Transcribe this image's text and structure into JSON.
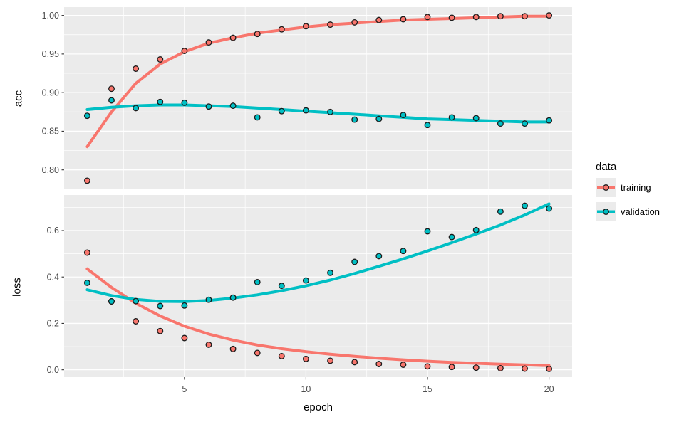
{
  "chart_data": {
    "type": "scatter",
    "note": "ggplot2-style Keras training history: points + smoothed trend lines, facets acc / loss",
    "x": [
      1,
      2,
      3,
      4,
      5,
      6,
      7,
      8,
      9,
      10,
      11,
      12,
      13,
      14,
      15,
      16,
      17,
      18,
      19,
      20
    ],
    "xlabel": "epoch",
    "xlim": [
      0.05,
      20.95
    ],
    "x_major_ticks": [
      {
        "v": 5,
        "label": "5"
      },
      {
        "v": 10,
        "label": "10"
      },
      {
        "v": 15,
        "label": "15"
      },
      {
        "v": 20,
        "label": "20"
      }
    ],
    "x_minor_ticks": [
      2.5,
      7.5,
      12.5,
      17.5
    ],
    "grid": "on",
    "legend_position": "right",
    "panels": [
      {
        "ylabel": "acc",
        "ylim": [
          0.7753,
          1.0107
        ],
        "y_major_ticks": [
          {
            "v": 1.0,
            "label": "1.00"
          },
          {
            "v": 0.95,
            "label": "0.95"
          },
          {
            "v": 0.9,
            "label": "0.90"
          },
          {
            "v": 0.85,
            "label": "0.85"
          },
          {
            "v": 0.8,
            "label": "0.80"
          }
        ],
        "y_minor_ticks": [
          0.975,
          0.925,
          0.875,
          0.825
        ],
        "show_x_tick_labels": false,
        "series": [
          {
            "name": "training",
            "color": "#F8766D",
            "points": [
              0.786,
              0.905,
              0.931,
              0.943,
              0.954,
              0.965,
              0.971,
              0.976,
              0.982,
              0.986,
              0.988,
              0.991,
              0.994,
              0.995,
              0.998,
              0.997,
              0.998,
              0.999,
              0.999,
              1.0
            ],
            "smooth": [
              0.83,
              0.875,
              0.912,
              0.937,
              0.953,
              0.964,
              0.971,
              0.977,
              0.981,
              0.985,
              0.988,
              0.99,
              0.992,
              0.994,
              0.995,
              0.996,
              0.997,
              0.998,
              0.999,
              0.999
            ]
          },
          {
            "name": "validation",
            "color": "#00BFC4",
            "points": [
              0.87,
              0.89,
              0.88,
              0.888,
              0.887,
              0.882,
              0.883,
              0.868,
              0.876,
              0.877,
              0.875,
              0.865,
              0.866,
              0.871,
              0.858,
              0.868,
              0.867,
              0.86,
              0.86,
              0.864
            ],
            "smooth": [
              0.878,
              0.881,
              0.883,
              0.884,
              0.884,
              0.883,
              0.882,
              0.88,
              0.878,
              0.876,
              0.874,
              0.872,
              0.87,
              0.868,
              0.866,
              0.865,
              0.864,
              0.863,
              0.862,
              0.862
            ]
          }
        ]
      },
      {
        "ylabel": "loss",
        "ylim": [
          -0.0317,
          0.7533
        ],
        "y_major_ticks": [
          {
            "v": 0.6,
            "label": "0.6"
          },
          {
            "v": 0.4,
            "label": "0.4"
          },
          {
            "v": 0.2,
            "label": "0.2"
          },
          {
            "v": 0.0,
            "label": "0.0"
          }
        ],
        "y_minor_ticks": [
          0.7,
          0.5,
          0.3,
          0.1
        ],
        "show_x_tick_labels": true,
        "series": [
          {
            "name": "training",
            "color": "#F8766D",
            "points": [
              0.505,
              0.295,
              0.209,
              0.167,
              0.137,
              0.108,
              0.09,
              0.073,
              0.059,
              0.047,
              0.039,
              0.033,
              0.025,
              0.022,
              0.015,
              0.012,
              0.009,
              0.007,
              0.005,
              0.004
            ],
            "smooth": [
              0.435,
              0.355,
              0.287,
              0.232,
              0.188,
              0.154,
              0.128,
              0.107,
              0.091,
              0.078,
              0.067,
              0.058,
              0.05,
              0.043,
              0.037,
              0.032,
              0.028,
              0.024,
              0.021,
              0.018
            ]
          },
          {
            "name": "validation",
            "color": "#00BFC4",
            "points": [
              0.375,
              0.295,
              0.296,
              0.275,
              0.277,
              0.302,
              0.311,
              0.378,
              0.362,
              0.385,
              0.418,
              0.465,
              0.49,
              0.512,
              0.597,
              0.572,
              0.602,
              0.682,
              0.707,
              0.695
            ],
            "smooth": [
              0.345,
              0.32,
              0.303,
              0.295,
              0.294,
              0.299,
              0.309,
              0.323,
              0.341,
              0.362,
              0.387,
              0.415,
              0.446,
              0.478,
              0.512,
              0.548,
              0.585,
              0.624,
              0.667,
              0.715
            ]
          }
        ]
      }
    ],
    "legend": {
      "title": "data",
      "entries": [
        {
          "label": "training",
          "color": "#F8766D"
        },
        {
          "label": "validation",
          "color": "#00BFC4"
        }
      ]
    },
    "style": {
      "panel_bg": "#EBEBEB",
      "grid_color": "#FFFFFF",
      "tick_text_color": "#4D4D4D",
      "tick_mark_color": "#333333",
      "point_stroke": "#1A1A1A"
    }
  }
}
